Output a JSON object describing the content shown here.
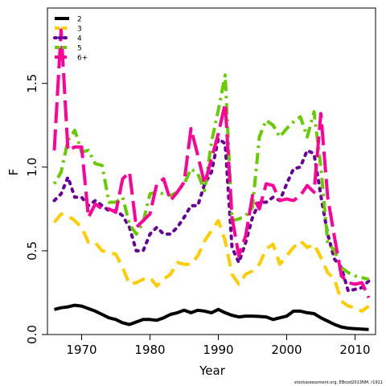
{
  "chart_data": {
    "type": "line",
    "xlabel": "Year",
    "ylabel": "F",
    "xlim": [
      1965,
      2013
    ],
    "ylim": [
      0,
      1.95
    ],
    "xticks": [
      1970,
      1980,
      1990,
      2000,
      2010
    ],
    "yticks": [
      0.0,
      0.5,
      1.0,
      1.5
    ],
    "ytick_labels": [
      "0.0",
      "0.5",
      "1.0",
      "1.5"
    ],
    "grid": false,
    "legend_position": "top-left",
    "credit": "stockassessment.org, EBcod2013NM, r1911",
    "x": [
      1966,
      1967,
      1968,
      1969,
      1970,
      1971,
      1972,
      1973,
      1974,
      1975,
      1976,
      1977,
      1978,
      1979,
      1980,
      1981,
      1982,
      1983,
      1984,
      1985,
      1986,
      1987,
      1988,
      1989,
      1990,
      1991,
      1992,
      1993,
      1994,
      1995,
      1996,
      1997,
      1998,
      1999,
      2000,
      2001,
      2002,
      2003,
      2004,
      2005,
      2006,
      2007,
      2008,
      2009,
      2010,
      2011,
      2012
    ],
    "series": [
      {
        "name": "2",
        "color": "#000000",
        "dash": "solid",
        "values": [
          0.15,
          0.16,
          0.165,
          0.175,
          0.17,
          0.155,
          0.14,
          0.12,
          0.1,
          0.09,
          0.07,
          0.06,
          0.075,
          0.09,
          0.09,
          0.085,
          0.1,
          0.12,
          0.13,
          0.145,
          0.13,
          0.145,
          0.14,
          0.13,
          0.15,
          0.13,
          0.115,
          0.105,
          0.11,
          0.11,
          0.108,
          0.105,
          0.09,
          0.1,
          0.11,
          0.14,
          0.14,
          0.13,
          0.125,
          0.1,
          0.08,
          0.06,
          0.045,
          0.038,
          0.035,
          0.032,
          0.03
        ]
      },
      {
        "name": "3",
        "color": "#ffcc00",
        "dash": "dashed",
        "values": [
          0.67,
          0.72,
          0.71,
          0.68,
          0.64,
          0.55,
          0.55,
          0.5,
          0.49,
          0.48,
          0.4,
          0.3,
          0.31,
          0.33,
          0.34,
          0.29,
          0.33,
          0.36,
          0.43,
          0.42,
          0.42,
          0.47,
          0.56,
          0.62,
          0.68,
          0.56,
          0.36,
          0.3,
          0.36,
          0.38,
          0.42,
          0.51,
          0.54,
          0.42,
          0.47,
          0.52,
          0.56,
          0.52,
          0.54,
          0.46,
          0.37,
          0.33,
          0.2,
          0.17,
          0.16,
          0.14,
          0.17
        ]
      },
      {
        "name": "4",
        "color": "#660099",
        "dash": "dotted",
        "values": [
          0.8,
          0.84,
          0.94,
          0.82,
          0.82,
          0.77,
          0.8,
          0.77,
          0.74,
          0.74,
          0.71,
          0.64,
          0.5,
          0.5,
          0.6,
          0.64,
          0.6,
          0.6,
          0.64,
          0.7,
          0.77,
          0.77,
          0.9,
          0.97,
          1.17,
          1.14,
          0.52,
          0.43,
          0.55,
          0.7,
          0.79,
          0.79,
          0.82,
          0.8,
          0.9,
          0.99,
          1.0,
          1.1,
          1.08,
          0.83,
          0.6,
          0.45,
          0.4,
          0.26,
          0.27,
          0.28,
          0.32
        ]
      },
      {
        "name": "5",
        "color": "#66cc00",
        "dash": "dashdot",
        "values": [
          0.9,
          0.97,
          1.16,
          1.22,
          1.09,
          1.1,
          1.02,
          1.01,
          0.79,
          0.79,
          0.82,
          0.66,
          0.6,
          0.67,
          0.84,
          0.85,
          0.84,
          0.83,
          0.85,
          0.9,
          0.99,
          0.96,
          0.86,
          1.15,
          1.34,
          1.55,
          0.68,
          0.69,
          0.71,
          0.76,
          1.18,
          1.28,
          1.25,
          1.18,
          1.23,
          1.27,
          1.3,
          1.18,
          1.33,
          1.0,
          0.55,
          0.5,
          0.4,
          0.37,
          0.35,
          0.34,
          0.33
        ]
      },
      {
        "name": "6+",
        "color": "#ff0099",
        "dash": "longdash",
        "values": [
          1.1,
          1.82,
          1.1,
          1.12,
          1.12,
          0.7,
          0.78,
          0.75,
          0.75,
          0.73,
          0.93,
          0.97,
          0.64,
          0.68,
          0.72,
          0.9,
          0.93,
          0.8,
          0.85,
          0.91,
          1.23,
          1.07,
          0.9,
          1.05,
          1.2,
          1.38,
          0.7,
          0.47,
          0.59,
          0.83,
          0.75,
          0.9,
          0.89,
          0.8,
          0.81,
          0.8,
          0.83,
          0.89,
          0.85,
          1.32,
          0.82,
          0.58,
          0.35,
          0.31,
          0.3,
          0.31,
          0.22
        ]
      }
    ]
  }
}
